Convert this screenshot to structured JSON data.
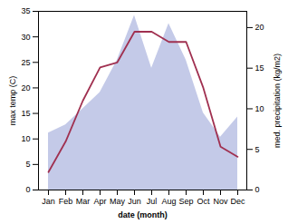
{
  "chart_data": {
    "type": "line",
    "categories": [
      "Jan",
      "Feb",
      "Mar",
      "Apr",
      "May",
      "Jun",
      "Jul",
      "Aug",
      "Sep",
      "Oct",
      "Nov",
      "Dec"
    ],
    "xlabel": "date (month)",
    "ylabel": "max temp (C)",
    "y2label": "med. precipitation (kg/m2)",
    "ylim": [
      0,
      35
    ],
    "yticks": [
      0,
      5,
      10,
      15,
      20,
      25,
      30,
      35
    ],
    "y2lim": [
      0,
      22
    ],
    "y2ticks": [
      0,
      5,
      10,
      15,
      20
    ],
    "grid": false,
    "series": [
      {
        "type": "area",
        "axis": "y2",
        "color": "#b0b8e0",
        "values": [
          7.0,
          8.0,
          10.0,
          12.0,
          16.0,
          21.5,
          15.0,
          20.5,
          16.0,
          9.5,
          6.5,
          9.0
        ]
      },
      {
        "type": "line",
        "color": "#a03050",
        "values": [
          3.5,
          9.5,
          17.5,
          24.0,
          25.0,
          31.0,
          31.0,
          29.0,
          29.0,
          20.0,
          8.5,
          6.5
        ]
      }
    ]
  }
}
